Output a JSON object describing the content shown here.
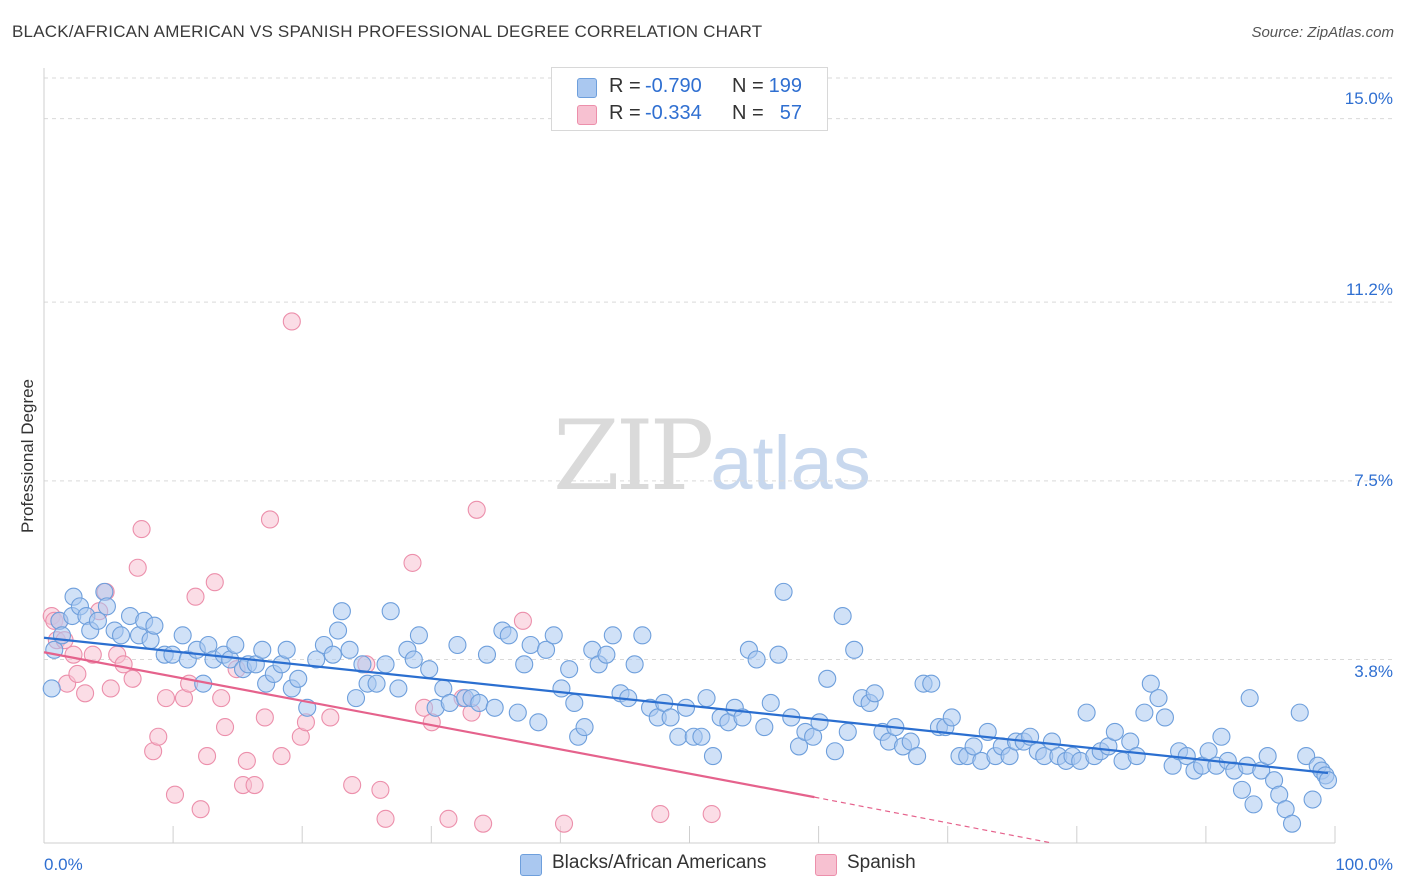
{
  "title": "BLACK/AFRICAN AMERICAN VS SPANISH PROFESSIONAL DEGREE CORRELATION CHART",
  "source": "Source: ZipAtlas.com",
  "watermark": {
    "zip": "ZIP",
    "atlas": "atlas"
  },
  "colors": {
    "blue_fill": "#aac8f0",
    "blue_stroke": "#6e9fdc",
    "blue_line": "#2b6fd0",
    "pink_fill": "#f7c1d1",
    "pink_stroke": "#ec8fab",
    "pink_line": "#e5628c",
    "value_text": "#2f6fd1",
    "grid": "#d9d9d9"
  },
  "legend_top": [
    {
      "r_label": "R =",
      "r_value": "-0.790",
      "n_label": "N =",
      "n_value": "199"
    },
    {
      "r_label": "R =",
      "r_value": "-0.334",
      "n_label": "N =",
      "n_value": "57"
    }
  ],
  "legend_bottom": [
    "Blacks/African Americans",
    "Spanish"
  ],
  "chart_data": {
    "type": "scatter",
    "title": "BLACK/AFRICAN AMERICAN VS SPANISH PROFESSIONAL DEGREE CORRELATION CHART",
    "xlabel": "",
    "ylabel": "Professional Degree",
    "xlim": [
      0,
      100
    ],
    "ylim": [
      0,
      15.8
    ],
    "y_ticks": [
      3.8,
      7.5,
      11.2,
      15.0
    ],
    "y_tick_labels": [
      "3.8%",
      "7.5%",
      "11.2%",
      "15.0%"
    ],
    "x_tick_labels": [
      "0.0%",
      "100.0%"
    ],
    "grid": true,
    "series": [
      {
        "name": "Blacks/African Americans",
        "r": -0.79,
        "n": 199,
        "trend": {
          "x": [
            0,
            100
          ],
          "y": [
            4.25,
            1.45
          ]
        },
        "points": [
          [
            0.6,
            3.2
          ],
          [
            0.8,
            4.0
          ],
          [
            1.2,
            4.6
          ],
          [
            1.4,
            4.3
          ],
          [
            2.2,
            4.7
          ],
          [
            2.3,
            5.1
          ],
          [
            2.8,
            4.9
          ],
          [
            3.3,
            4.7
          ],
          [
            3.6,
            4.4
          ],
          [
            4.2,
            4.6
          ],
          [
            4.7,
            5.2
          ],
          [
            4.9,
            4.9
          ],
          [
            5.5,
            4.4
          ],
          [
            6.0,
            4.3
          ],
          [
            6.7,
            4.7
          ],
          [
            7.4,
            4.3
          ],
          [
            7.8,
            4.6
          ],
          [
            8.3,
            4.2
          ],
          [
            8.6,
            4.5
          ],
          [
            9.4,
            3.9
          ],
          [
            10.0,
            3.9
          ],
          [
            10.8,
            4.3
          ],
          [
            11.2,
            3.8
          ],
          [
            11.9,
            4.0
          ],
          [
            12.4,
            3.3
          ],
          [
            12.8,
            4.1
          ],
          [
            13.2,
            3.8
          ],
          [
            14.0,
            3.9
          ],
          [
            14.5,
            3.8
          ],
          [
            14.9,
            4.1
          ],
          [
            15.5,
            3.6
          ],
          [
            15.9,
            3.7
          ],
          [
            16.5,
            3.7
          ],
          [
            17.0,
            4.0
          ],
          [
            17.3,
            3.3
          ],
          [
            17.9,
            3.5
          ],
          [
            18.5,
            3.7
          ],
          [
            18.9,
            4.0
          ],
          [
            19.3,
            3.2
          ],
          [
            19.8,
            3.4
          ],
          [
            20.5,
            2.8
          ],
          [
            21.2,
            3.8
          ],
          [
            21.8,
            4.1
          ],
          [
            22.5,
            3.9
          ],
          [
            22.9,
            4.4
          ],
          [
            23.2,
            4.8
          ],
          [
            23.8,
            4.0
          ],
          [
            24.3,
            3.0
          ],
          [
            24.8,
            3.7
          ],
          [
            25.2,
            3.3
          ],
          [
            25.9,
            3.3
          ],
          [
            26.6,
            3.7
          ],
          [
            27.0,
            4.8
          ],
          [
            27.6,
            3.2
          ],
          [
            28.3,
            4.0
          ],
          [
            28.8,
            3.8
          ],
          [
            29.2,
            4.3
          ],
          [
            30.0,
            3.6
          ],
          [
            30.5,
            2.8
          ],
          [
            31.1,
            3.2
          ],
          [
            31.6,
            2.9
          ],
          [
            32.2,
            4.1
          ],
          [
            32.8,
            3.0
          ],
          [
            33.3,
            3.0
          ],
          [
            33.9,
            2.9
          ],
          [
            34.5,
            3.9
          ],
          [
            35.1,
            2.8
          ],
          [
            35.7,
            4.4
          ],
          [
            36.2,
            4.3
          ],
          [
            36.9,
            2.7
          ],
          [
            37.4,
            3.7
          ],
          [
            37.9,
            4.1
          ],
          [
            38.5,
            2.5
          ],
          [
            39.1,
            4.0
          ],
          [
            39.7,
            4.3
          ],
          [
            40.3,
            3.2
          ],
          [
            40.9,
            3.6
          ],
          [
            41.3,
            2.9
          ],
          [
            41.6,
            2.2
          ],
          [
            42.1,
            2.4
          ],
          [
            42.7,
            4.0
          ],
          [
            43.2,
            3.7
          ],
          [
            43.8,
            3.9
          ],
          [
            44.3,
            4.3
          ],
          [
            44.9,
            3.1
          ],
          [
            45.5,
            3.0
          ],
          [
            46.0,
            3.7
          ],
          [
            46.6,
            4.3
          ],
          [
            47.2,
            2.8
          ],
          [
            47.8,
            2.6
          ],
          [
            48.3,
            2.9
          ],
          [
            48.8,
            2.6
          ],
          [
            49.4,
            2.2
          ],
          [
            50.0,
            2.8
          ],
          [
            50.6,
            2.2
          ],
          [
            51.2,
            2.2
          ],
          [
            51.6,
            3.0
          ],
          [
            52.1,
            1.8
          ],
          [
            52.7,
            2.6
          ],
          [
            53.3,
            2.5
          ],
          [
            53.8,
            2.8
          ],
          [
            54.4,
            2.6
          ],
          [
            54.9,
            4.0
          ],
          [
            55.5,
            3.8
          ],
          [
            56.1,
            2.4
          ],
          [
            56.6,
            2.9
          ],
          [
            57.2,
            3.9
          ],
          [
            57.6,
            5.2
          ],
          [
            58.2,
            2.6
          ],
          [
            58.8,
            2.0
          ],
          [
            59.3,
            2.3
          ],
          [
            59.9,
            2.2
          ],
          [
            60.4,
            2.5
          ],
          [
            61.0,
            3.4
          ],
          [
            61.6,
            1.9
          ],
          [
            62.2,
            4.7
          ],
          [
            62.6,
            2.3
          ],
          [
            63.1,
            4.0
          ],
          [
            63.7,
            3.0
          ],
          [
            64.3,
            2.9
          ],
          [
            64.7,
            3.1
          ],
          [
            65.3,
            2.3
          ],
          [
            65.8,
            2.1
          ],
          [
            66.3,
            2.4
          ],
          [
            66.9,
            2.0
          ],
          [
            67.5,
            2.1
          ],
          [
            68.0,
            1.8
          ],
          [
            68.5,
            3.3
          ],
          [
            69.1,
            3.3
          ],
          [
            69.7,
            2.4
          ],
          [
            70.2,
            2.4
          ],
          [
            70.7,
            2.6
          ],
          [
            71.3,
            1.8
          ],
          [
            71.9,
            1.8
          ],
          [
            72.4,
            2.0
          ],
          [
            73.0,
            1.7
          ],
          [
            73.5,
            2.3
          ],
          [
            74.1,
            1.8
          ],
          [
            74.6,
            2.0
          ],
          [
            75.2,
            1.8
          ],
          [
            75.7,
            2.1
          ],
          [
            76.3,
            2.1
          ],
          [
            76.8,
            2.2
          ],
          [
            77.4,
            1.9
          ],
          [
            77.9,
            1.8
          ],
          [
            78.5,
            2.1
          ],
          [
            79.0,
            1.8
          ],
          [
            79.6,
            1.7
          ],
          [
            80.1,
            1.8
          ],
          [
            80.7,
            1.7
          ],
          [
            81.2,
            2.7
          ],
          [
            81.8,
            1.8
          ],
          [
            82.3,
            1.9
          ],
          [
            82.9,
            2.0
          ],
          [
            83.4,
            2.3
          ],
          [
            84.0,
            1.7
          ],
          [
            84.6,
            2.1
          ],
          [
            85.1,
            1.8
          ],
          [
            85.7,
            2.7
          ],
          [
            86.2,
            3.3
          ],
          [
            86.8,
            3.0
          ],
          [
            87.3,
            2.6
          ],
          [
            87.9,
            1.6
          ],
          [
            88.4,
            1.9
          ],
          [
            89.0,
            1.8
          ],
          [
            89.6,
            1.5
          ],
          [
            90.2,
            1.6
          ],
          [
            90.7,
            1.9
          ],
          [
            91.3,
            1.6
          ],
          [
            91.7,
            2.2
          ],
          [
            92.2,
            1.7
          ],
          [
            92.7,
            1.5
          ],
          [
            93.3,
            1.1
          ],
          [
            93.7,
            1.6
          ],
          [
            94.2,
            0.8
          ],
          [
            94.8,
            1.5
          ],
          [
            95.3,
            1.8
          ],
          [
            95.8,
            1.3
          ],
          [
            96.2,
            1.0
          ],
          [
            96.7,
            0.7
          ],
          [
            97.2,
            0.4
          ],
          [
            97.8,
            2.7
          ],
          [
            98.3,
            1.8
          ],
          [
            98.8,
            0.9
          ],
          [
            99.2,
            1.6
          ],
          [
            99.5,
            1.5
          ],
          [
            99.8,
            1.4
          ],
          [
            100.0,
            1.3
          ],
          [
            93.9,
            3.0
          ]
        ]
      },
      {
        "name": "Spanish",
        "r": -0.334,
        "n": 57,
        "trend": {
          "x": [
            0,
            60
          ],
          "y": [
            3.95,
            0.95
          ]
        },
        "trend_dashed": {
          "x": [
            60,
            78.5
          ],
          "y": [
            0.95,
            0.0
          ]
        },
        "points": [
          [
            0.6,
            4.7
          ],
          [
            0.8,
            4.6
          ],
          [
            1.0,
            4.2
          ],
          [
            1.2,
            4.6
          ],
          [
            1.6,
            4.2
          ],
          [
            1.8,
            3.3
          ],
          [
            2.3,
            3.9
          ],
          [
            2.6,
            3.5
          ],
          [
            3.2,
            3.1
          ],
          [
            3.8,
            3.9
          ],
          [
            4.3,
            4.8
          ],
          [
            4.8,
            5.2
          ],
          [
            5.2,
            3.2
          ],
          [
            5.7,
            3.9
          ],
          [
            6.2,
            3.7
          ],
          [
            6.9,
            3.4
          ],
          [
            7.3,
            5.7
          ],
          [
            7.6,
            6.5
          ],
          [
            8.5,
            1.9
          ],
          [
            8.9,
            2.2
          ],
          [
            9.5,
            3.0
          ],
          [
            10.2,
            1.0
          ],
          [
            10.9,
            3.0
          ],
          [
            11.3,
            3.3
          ],
          [
            11.8,
            5.1
          ],
          [
            12.2,
            0.7
          ],
          [
            12.7,
            1.8
          ],
          [
            13.3,
            5.4
          ],
          [
            13.8,
            3.0
          ],
          [
            14.1,
            2.4
          ],
          [
            15.0,
            3.6
          ],
          [
            15.5,
            1.2
          ],
          [
            15.8,
            1.7
          ],
          [
            16.4,
            1.2
          ],
          [
            17.2,
            2.6
          ],
          [
            17.6,
            6.7
          ],
          [
            18.5,
            1.8
          ],
          [
            19.3,
            10.8
          ],
          [
            20.0,
            2.2
          ],
          [
            20.4,
            2.5
          ],
          [
            22.3,
            2.6
          ],
          [
            24.0,
            1.2
          ],
          [
            25.1,
            3.7
          ],
          [
            26.2,
            1.1
          ],
          [
            26.6,
            0.5
          ],
          [
            28.7,
            5.8
          ],
          [
            29.6,
            2.8
          ],
          [
            30.2,
            2.5
          ],
          [
            31.5,
            0.5
          ],
          [
            32.6,
            3.0
          ],
          [
            33.3,
            2.7
          ],
          [
            33.7,
            6.9
          ],
          [
            34.2,
            0.4
          ],
          [
            37.3,
            4.6
          ],
          [
            40.5,
            0.4
          ],
          [
            48.0,
            0.6
          ],
          [
            52.0,
            0.6
          ]
        ]
      }
    ]
  },
  "axis_labels": {
    "y_title": "Professional Degree",
    "y_ticks": [
      "3.8%",
      "7.5%",
      "11.2%",
      "15.0%"
    ],
    "x_left": "0.0%",
    "x_right": "100.0%"
  }
}
